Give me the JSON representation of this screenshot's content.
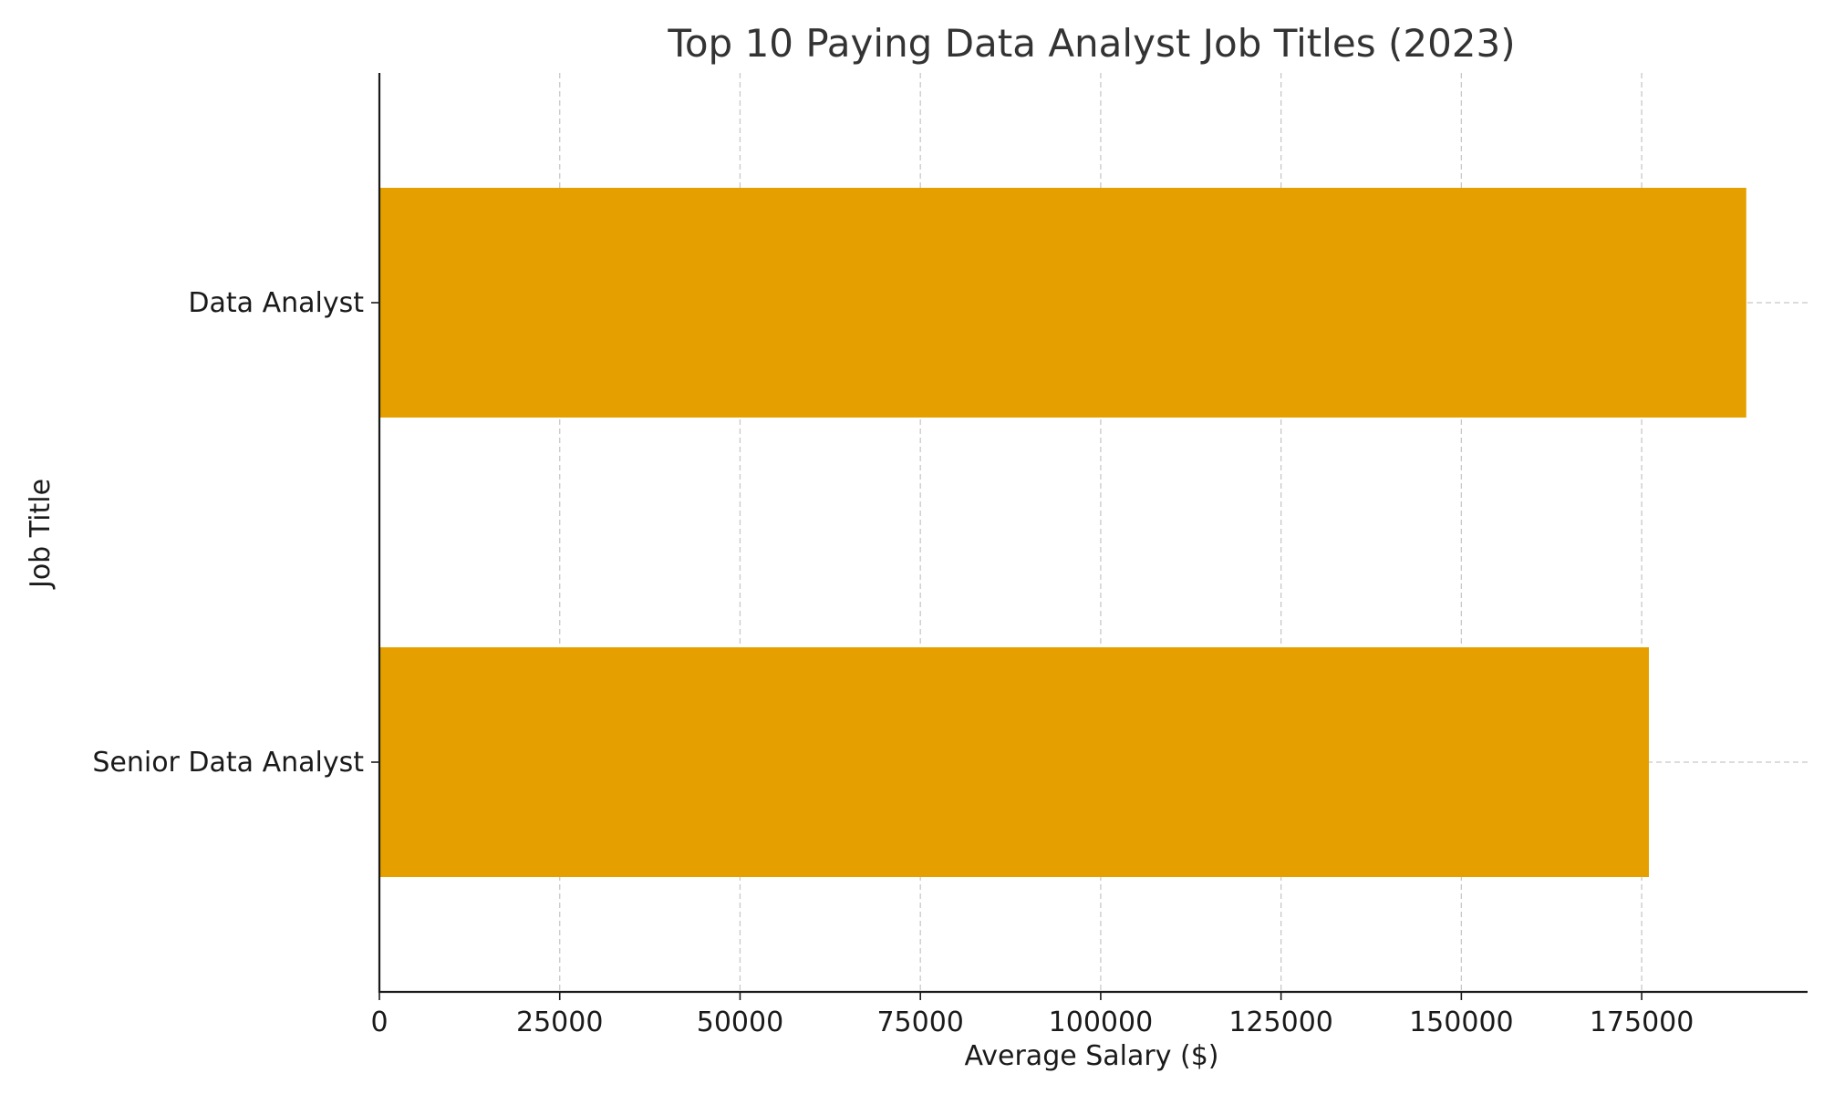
{
  "chart_data": {
    "type": "bar",
    "orientation": "horizontal",
    "title": "Top 10 Paying Data Analyst Job Titles (2023)",
    "xlabel": "Average Salary ($)",
    "ylabel": "Job Title",
    "categories": [
      "Data Analyst",
      "Senior Data Analyst"
    ],
    "values": [
      189500,
      176000
    ],
    "xlim": [
      0,
      198000
    ],
    "xticks": [
      0,
      25000,
      50000,
      75000,
      100000,
      125000,
      150000,
      175000
    ],
    "xtick_labels": [
      "0",
      "25000",
      "50000",
      "75000",
      "100000",
      "125000",
      "150000",
      "175000"
    ],
    "bar_color": "#E5A000",
    "grid": true,
    "grid_style": "dashed"
  }
}
